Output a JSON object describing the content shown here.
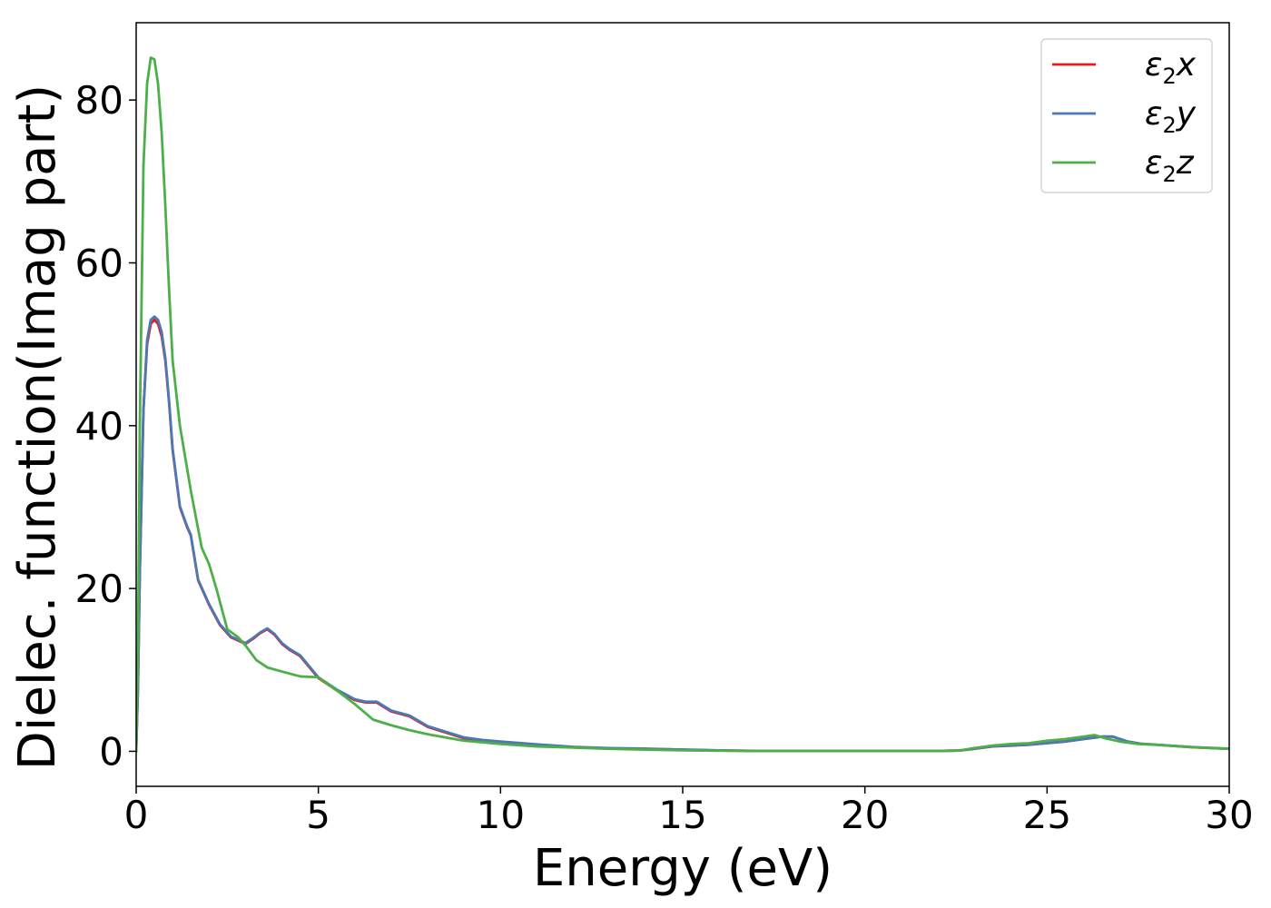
{
  "chart_data": {
    "type": "line",
    "title": "",
    "xlabel": "Energy (eV)",
    "ylabel": "Dielec. function(Imag part)",
    "xlim": [
      0,
      30
    ],
    "ylim": [
      -4.3,
      89.5
    ],
    "xticks": [
      0,
      5,
      10,
      15,
      20,
      25,
      30
    ],
    "yticks": [
      0,
      20,
      40,
      60,
      80
    ],
    "grid": false,
    "legend_position": "top-right",
    "series": [
      {
        "name": "ε2x",
        "legend_symbol": "ε",
        "legend_sub": "2",
        "legend_var": "x",
        "color": "#e41a1c",
        "x": [
          0,
          0.05,
          0.1,
          0.2,
          0.3,
          0.4,
          0.5,
          0.6,
          0.7,
          0.8,
          0.9,
          1.0,
          1.2,
          1.4,
          1.5,
          1.7,
          2.0,
          2.3,
          2.6,
          3.0,
          3.2,
          3.4,
          3.6,
          3.8,
          4.0,
          4.2,
          4.5,
          5.0,
          5.5,
          6.0,
          6.3,
          6.6,
          7.0,
          7.5,
          8.0,
          8.5,
          9.0,
          9.5,
          10,
          11,
          12,
          13,
          14,
          15,
          16,
          17,
          18,
          19,
          20,
          21,
          22,
          22.6,
          23.0,
          23.5,
          24.0,
          24.5,
          25.0,
          25.5,
          26.0,
          26.5,
          26.8,
          27.2,
          27.6,
          28,
          29,
          30
        ],
        "y": [
          0,
          8,
          22,
          42,
          50,
          52.5,
          53,
          52.5,
          51,
          48,
          43,
          37,
          30,
          27.5,
          26.5,
          21,
          18,
          15.5,
          14,
          13.2,
          13.8,
          14.5,
          15.0,
          14.3,
          13.2,
          12.5,
          11.7,
          9.0,
          7.5,
          6.3,
          6.0,
          6.0,
          4.9,
          4.3,
          3.0,
          2.3,
          1.6,
          1.3,
          1.1,
          0.8,
          0.5,
          0.35,
          0.3,
          0.2,
          0.1,
          0.05,
          0.05,
          0.05,
          0.05,
          0.05,
          0.05,
          0.1,
          0.3,
          0.6,
          0.7,
          0.8,
          1.0,
          1.2,
          1.5,
          1.8,
          1.8,
          1.2,
          0.9,
          0.8,
          0.5,
          0.3
        ]
      },
      {
        "name": "ε2y",
        "legend_symbol": "ε",
        "legend_sub": "2",
        "legend_var": "y",
        "color": "#4a7ab5",
        "x": [
          0,
          0.05,
          0.1,
          0.2,
          0.3,
          0.4,
          0.5,
          0.6,
          0.7,
          0.8,
          0.9,
          1.0,
          1.2,
          1.4,
          1.5,
          1.7,
          2.0,
          2.3,
          2.6,
          3.0,
          3.2,
          3.4,
          3.6,
          3.8,
          4.0,
          4.2,
          4.5,
          5.0,
          5.5,
          6.0,
          6.3,
          6.6,
          7.0,
          7.5,
          8.0,
          8.5,
          9.0,
          9.5,
          10,
          11,
          12,
          13,
          14,
          15,
          16,
          17,
          18,
          19,
          20,
          21,
          22,
          22.6,
          23.0,
          23.5,
          24.0,
          24.5,
          25.0,
          25.5,
          26.0,
          26.5,
          26.8,
          27.2,
          27.6,
          28,
          29,
          30
        ],
        "y": [
          0,
          8,
          22,
          42,
          50.5,
          53,
          53.4,
          53,
          51.5,
          48.3,
          43.2,
          37.2,
          30.1,
          27.6,
          26.6,
          21.1,
          18.1,
          15.6,
          14.1,
          13.3,
          13.9,
          14.6,
          15.1,
          14.4,
          13.3,
          12.6,
          11.8,
          9.1,
          7.6,
          6.4,
          6.1,
          6.1,
          5.0,
          4.4,
          3.1,
          2.4,
          1.7,
          1.4,
          1.2,
          0.85,
          0.55,
          0.4,
          0.32,
          0.22,
          0.12,
          0.06,
          0.05,
          0.05,
          0.05,
          0.05,
          0.05,
          0.1,
          0.32,
          0.62,
          0.72,
          0.82,
          1.02,
          1.22,
          1.52,
          1.82,
          1.82,
          1.22,
          0.92,
          0.82,
          0.52,
          0.32
        ]
      },
      {
        "name": "ε2z",
        "legend_symbol": "ε",
        "legend_sub": "2",
        "legend_var": "z",
        "color": "#4daf4a",
        "x": [
          0,
          0.05,
          0.1,
          0.2,
          0.3,
          0.4,
          0.5,
          0.6,
          0.7,
          0.8,
          0.9,
          1.0,
          1.2,
          1.5,
          1.8,
          2.0,
          2.2,
          2.5,
          2.8,
          3.0,
          3.3,
          3.6,
          4.0,
          4.5,
          5.0,
          5.5,
          6.0,
          6.5,
          7.0,
          7.5,
          8.0,
          8.5,
          9.0,
          10,
          11,
          12,
          13,
          14,
          15,
          16,
          17,
          18,
          19,
          20,
          21,
          22,
          22.6,
          23.0,
          23.5,
          24.0,
          24.5,
          25.0,
          25.5,
          26.0,
          26.3,
          26.6,
          27.0,
          27.5,
          28,
          29,
          30
        ],
        "y": [
          0,
          12,
          40,
          72,
          82,
          85.2,
          85,
          82,
          76,
          67,
          57,
          48,
          40,
          32,
          25,
          23,
          20,
          15,
          14,
          13,
          11.2,
          10.3,
          9.8,
          9.2,
          9.1,
          7.5,
          5.8,
          3.9,
          3.2,
          2.6,
          2.1,
          1.7,
          1.3,
          0.9,
          0.6,
          0.45,
          0.3,
          0.2,
          0.12,
          0.08,
          0.05,
          0.05,
          0.05,
          0.05,
          0.05,
          0.05,
          0.1,
          0.4,
          0.7,
          0.9,
          1.0,
          1.3,
          1.5,
          1.8,
          2.0,
          1.6,
          1.2,
          0.9,
          0.8,
          0.5,
          0.3
        ]
      }
    ]
  }
}
